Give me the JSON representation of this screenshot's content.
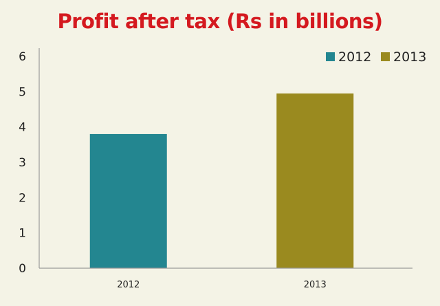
{
  "chart_data": {
    "type": "bar",
    "title": "Profit after tax (Rs in billions)",
    "xlabel": "",
    "ylabel": "",
    "categories": [
      "2012",
      "2013"
    ],
    "values": [
      3.8,
      4.95
    ],
    "colors": [
      "#238690",
      "#9a8a1f"
    ],
    "ylim": [
      0,
      6
    ],
    "yticks": [
      0,
      1,
      2,
      3,
      4,
      5,
      6
    ],
    "grid": false,
    "legend": {
      "placement": "top-right",
      "entries": [
        {
          "label": "2012",
          "color": "#238690"
        },
        {
          "label": "2013",
          "color": "#9a8a1f"
        }
      ]
    }
  }
}
